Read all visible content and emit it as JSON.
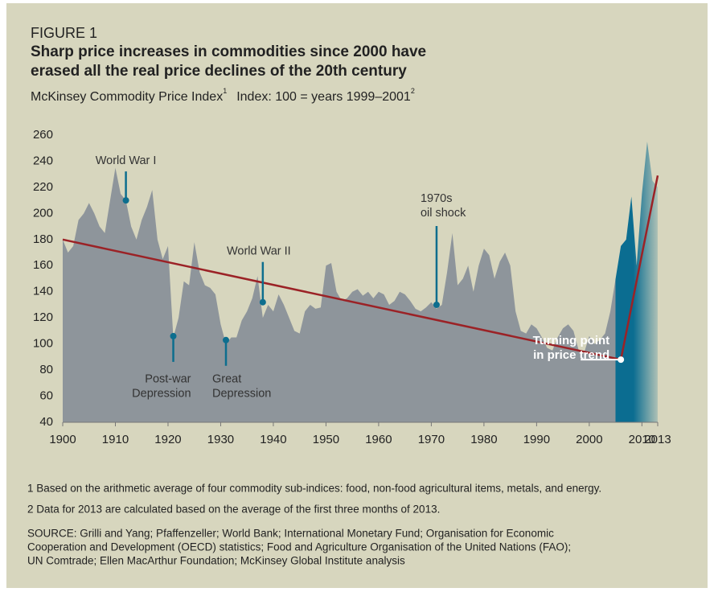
{
  "figure_label": "FIGURE 1",
  "title": [
    "Sharp price increases in commodities since 2000 have",
    "erased all the real price declines of the 20th century"
  ],
  "subtitle": [
    "McKinsey Commodity Price Index",
    "1",
    "Index: 100 = years 1999–2001",
    "2"
  ],
  "chart_data": {
    "type": "area",
    "x": [
      1900,
      1901,
      1902,
      1903,
      1904,
      1905,
      1906,
      1907,
      1908,
      1909,
      1910,
      1911,
      1912,
      1913,
      1914,
      1915,
      1916,
      1917,
      1918,
      1919,
      1920,
      1921,
      1922,
      1923,
      1924,
      1925,
      1926,
      1927,
      1928,
      1929,
      1930,
      1931,
      1932,
      1933,
      1934,
      1935,
      1936,
      1937,
      1938,
      1939,
      1940,
      1941,
      1942,
      1943,
      1944,
      1945,
      1946,
      1947,
      1948,
      1949,
      1950,
      1951,
      1952,
      1953,
      1954,
      1955,
      1956,
      1957,
      1958,
      1959,
      1960,
      1961,
      1962,
      1963,
      1964,
      1965,
      1966,
      1967,
      1968,
      1969,
      1970,
      1971,
      1972,
      1973,
      1974,
      1975,
      1976,
      1977,
      1978,
      1979,
      1980,
      1981,
      1982,
      1983,
      1984,
      1985,
      1986,
      1987,
      1988,
      1989,
      1990,
      1991,
      1992,
      1993,
      1994,
      1995,
      1996,
      1997,
      1998,
      1999,
      2000,
      2001,
      2002,
      2003,
      2004,
      2005,
      2006,
      2007,
      2008,
      2009,
      2010,
      2011,
      2012,
      2013
    ],
    "values": [
      180,
      170,
      175,
      195,
      200,
      208,
      200,
      190,
      185,
      210,
      235,
      215,
      210,
      190,
      180,
      195,
      205,
      218,
      180,
      165,
      175,
      105,
      120,
      148,
      145,
      178,
      155,
      145,
      143,
      138,
      115,
      100,
      105,
      105,
      118,
      125,
      135,
      152,
      120,
      130,
      125,
      138,
      130,
      120,
      110,
      108,
      125,
      130,
      127,
      128,
      160,
      162,
      140,
      133,
      135,
      140,
      142,
      137,
      140,
      135,
      140,
      138,
      130,
      133,
      140,
      138,
      133,
      127,
      125,
      128,
      132,
      127,
      130,
      155,
      185,
      145,
      150,
      160,
      140,
      160,
      173,
      168,
      150,
      163,
      170,
      160,
      125,
      110,
      108,
      115,
      112,
      105,
      97,
      95,
      105,
      112,
      115,
      110,
      95,
      93,
      106,
      100,
      103,
      108,
      125,
      150,
      175,
      180,
      213,
      160,
      215,
      255,
      225,
      220
    ],
    "color": "#8e959b",
    "highlight_color": "#0b6d91",
    "highlight_from": 2005,
    "trend": {
      "x": [
        1900,
        2006,
        2013
      ],
      "values": [
        180,
        88,
        229
      ],
      "color": "#9b2226"
    },
    "xlim": [
      1900,
      2013
    ],
    "xticks": [
      1900,
      1910,
      1920,
      1930,
      1940,
      1950,
      1960,
      1970,
      1980,
      1990,
      2000,
      2010,
      2013
    ],
    "ylim": [
      40,
      260
    ],
    "yticks": [
      40,
      60,
      80,
      100,
      120,
      140,
      160,
      180,
      200,
      220,
      240,
      260
    ],
    "grid": false,
    "annotations": [
      {
        "text": [
          "World War I"
        ],
        "x": 1912,
        "value": 210
      },
      {
        "text": [
          "Post-war",
          "Depression"
        ],
        "x": 1921,
        "value": 106
      },
      {
        "text": [
          "Great",
          "Depression"
        ],
        "x": 1931,
        "value": 103
      },
      {
        "text": [
          "World War II"
        ],
        "x": 1938,
        "value": 132
      },
      {
        "text": [
          "1970s",
          "oil shock"
        ],
        "x": 1971,
        "value": 130
      },
      {
        "text": [
          "Turning point",
          "in price trend"
        ],
        "x": 2006,
        "value": 88
      }
    ]
  },
  "footnotes": [
    "1 Based on the arithmetic average of four commodity sub-indices: food, non-food agricultural items, metals, and energy.",
    "2 Data for 2013 are calculated based on the average of the first three months of 2013."
  ],
  "source": [
    "SOURCE: Grilli and Yang; Pfaffenzeller; World Bank; International Monetary Fund; Organisation for Economic",
    "Cooperation and Development (OECD) statistics; Food and Agriculture Organisation of the United Nations (FAO);",
    "UN Comtrade; Ellen MacArthur Foundation; McKinsey Global Institute analysis"
  ]
}
